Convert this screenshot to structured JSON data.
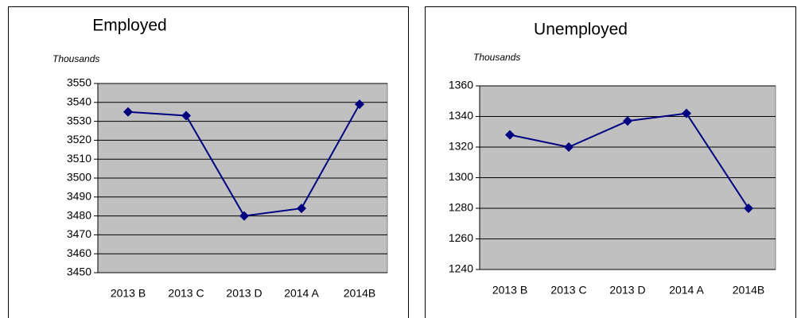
{
  "chart_data": [
    {
      "type": "line",
      "title": "Employed",
      "y_label": "Thousands",
      "categories": [
        "2013 B",
        "2013 C",
        "2013 D",
        "2014 A",
        "2014B"
      ],
      "series": [
        {
          "color": "#000080",
          "values": [
            3535,
            3533,
            3480,
            3484,
            3539
          ]
        }
      ],
      "ylim": [
        3450,
        3550
      ],
      "yticks": [
        3450,
        3460,
        3470,
        3480,
        3490,
        3500,
        3510,
        3520,
        3530,
        3540,
        3550
      ],
      "grid": true,
      "plot_color": "#c0c0c0"
    },
    {
      "type": "line",
      "title": "Unemployed",
      "y_label": "Thousands",
      "categories": [
        "2013 B",
        "2013 C",
        "2013 D",
        "2014 A",
        "2014B"
      ],
      "series": [
        {
          "color": "#000080",
          "values": [
            1328,
            1320,
            1337,
            1342,
            1280
          ]
        }
      ],
      "ylim": [
        1240,
        1360
      ],
      "yticks": [
        1240,
        1260,
        1280,
        1300,
        1320,
        1340,
        1360
      ],
      "grid": true,
      "plot_color": "#c0c0c0"
    }
  ]
}
